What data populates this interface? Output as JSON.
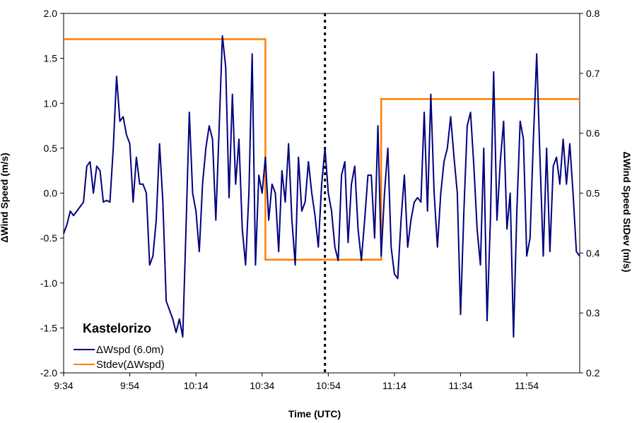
{
  "chart_data": {
    "type": "line",
    "title": "",
    "xlabel": "Time (UTC)",
    "ylabel_left": "ΔWind Speed  (m/s)",
    "ylabel_right": "ΔWind Speed StDev  (m/s)",
    "x_tick_labels": [
      "9:34",
      "9:54",
      "10:14",
      "10:34",
      "10:54",
      "11:14",
      "11:34",
      "11:54"
    ],
    "xlim_minutes": [
      0,
      156
    ],
    "ylim_left": [
      -2.0,
      2.0
    ],
    "ylim_right": [
      0.2,
      0.8
    ],
    "y_left_ticks": [
      "2.0",
      "1.5",
      "1.0",
      "0.5",
      "0.0",
      "-0.5",
      "-1.0",
      "-1.5",
      "-2.0"
    ],
    "y_right_ticks": [
      "0.8",
      "0.7",
      "0.6",
      "0.5",
      "0.4",
      "0.3",
      "0.2"
    ],
    "grid": false,
    "legend": {
      "title": "Kastelorizo",
      "position": "bottom-left",
      "entries": [
        "ΔWspd (6.0m)",
        "Stdev(ΔWspd)"
      ]
    },
    "annotations": [
      {
        "type": "vertical-dotted-line",
        "x_minutes": 79
      }
    ],
    "series": [
      {
        "name": "ΔWspd (6.0m)",
        "axis": "left",
        "color": "#00007f",
        "x": [
          0,
          1,
          2,
          3,
          4,
          5,
          6,
          7,
          8,
          9,
          10,
          11,
          12,
          13,
          14,
          15,
          16,
          17,
          18,
          19,
          20,
          21,
          22,
          23,
          24,
          25,
          26,
          27,
          28,
          29,
          30,
          31,
          32,
          33,
          34,
          35,
          36,
          37,
          38,
          39,
          40,
          41,
          42,
          43,
          44,
          45,
          46,
          47,
          48,
          49,
          50,
          51,
          52,
          53,
          54,
          55,
          56,
          57,
          58,
          59,
          60,
          61,
          62,
          63,
          64,
          65,
          66,
          67,
          68,
          69,
          70,
          71,
          72,
          73,
          74,
          75,
          76,
          77,
          78,
          79,
          80,
          81,
          82,
          83,
          84,
          85,
          86,
          87,
          88,
          89,
          90,
          91,
          92,
          93,
          94,
          95,
          96,
          97,
          98,
          99,
          100,
          101,
          102,
          103,
          104,
          105,
          106,
          107,
          108,
          109,
          110,
          111,
          112,
          113,
          114,
          115,
          116,
          117,
          118,
          119,
          120,
          121,
          122,
          123,
          124,
          125,
          126,
          127,
          128,
          129,
          130,
          131,
          132,
          133,
          134,
          135,
          136,
          137,
          138,
          139,
          140,
          141,
          142,
          143,
          144,
          145,
          146,
          147,
          148,
          149,
          150,
          151,
          152,
          153,
          154,
          155,
          156
        ],
        "y": [
          -0.45,
          -0.35,
          -0.2,
          -0.25,
          -0.2,
          -0.15,
          -0.1,
          0.3,
          0.35,
          0.0,
          0.3,
          0.25,
          -0.1,
          -0.08,
          -0.1,
          0.5,
          1.3,
          0.8,
          0.85,
          0.65,
          0.55,
          -0.1,
          0.4,
          0.1,
          0.1,
          0.0,
          -0.8,
          -0.7,
          -0.3,
          0.55,
          -0.1,
          -1.2,
          -1.3,
          -1.4,
          -1.55,
          -1.4,
          -1.6,
          -0.4,
          0.9,
          0.0,
          -0.2,
          -0.65,
          0.1,
          0.5,
          0.75,
          0.6,
          -0.3,
          0.7,
          1.75,
          1.4,
          -0.05,
          1.1,
          0.1,
          0.6,
          -0.4,
          -0.8,
          0.0,
          1.55,
          -0.8,
          0.2,
          0.0,
          0.4,
          -0.3,
          0.1,
          0.0,
          -0.65,
          0.25,
          -0.1,
          0.55,
          -0.3,
          -0.8,
          0.4,
          -0.2,
          -0.1,
          0.35,
          0.0,
          -0.25,
          -0.6,
          0.1,
          0.5,
          0.0,
          -0.2,
          -0.6,
          -0.75,
          0.2,
          0.35,
          -0.55,
          0.1,
          0.3,
          -0.4,
          -0.75,
          -0.3,
          0.2,
          0.2,
          -0.5,
          0.75,
          -0.7,
          0.0,
          0.5,
          -0.6,
          -0.9,
          -0.95,
          -0.3,
          0.2,
          -0.6,
          -0.3,
          -0.1,
          -0.05,
          -0.1,
          0.9,
          -0.2,
          1.1,
          0.0,
          -0.6,
          0.0,
          0.35,
          0.5,
          0.85,
          0.4,
          0.0,
          -1.35,
          -0.2,
          0.75,
          0.9,
          0.3,
          -0.4,
          -0.8,
          0.5,
          -1.42,
          -0.3,
          1.35,
          -0.3,
          0.35,
          0.8,
          -0.4,
          0.0,
          -1.6,
          -0.2,
          0.8,
          0.6,
          -0.7,
          -0.5,
          0.6,
          1.55,
          0.4,
          -0.7,
          0.5,
          -0.65,
          0.3,
          0.4,
          0.1,
          0.6,
          0.1,
          0.55,
          0.0,
          -0.65,
          -0.7
        ]
      },
      {
        "name": "Stdev(ΔWspd)",
        "axis": "right",
        "color": "#ff7f00",
        "x": [
          0,
          61,
          61,
          96,
          96,
          156
        ],
        "y": [
          0.757,
          0.757,
          0.389,
          0.389,
          0.657,
          0.657
        ]
      }
    ]
  }
}
